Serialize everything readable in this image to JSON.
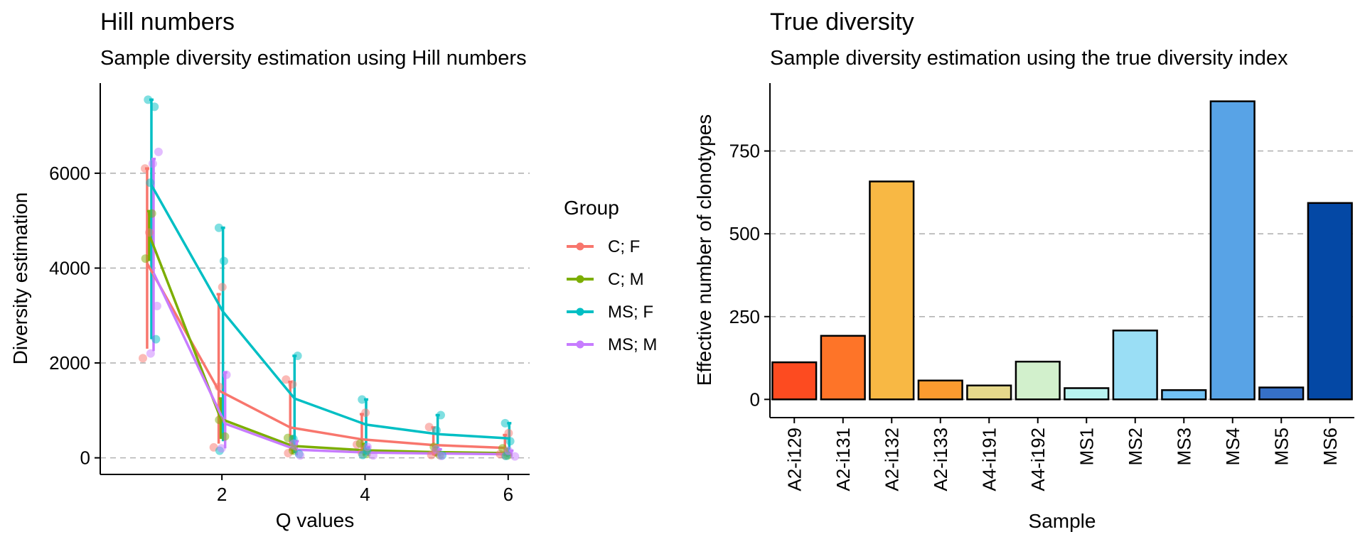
{
  "chart_data": [
    {
      "type": "line",
      "title": "Hill numbers",
      "subtitle": "Sample diversity estimation using Hill numbers",
      "xlabel": "Q values",
      "ylabel": "Diversity estimation",
      "xlim": [
        0.3,
        6.3
      ],
      "ylim": [
        -350,
        7900
      ],
      "x_ticks": [
        2,
        4,
        6
      ],
      "y_ticks": [
        0,
        2000,
        4000,
        6000
      ],
      "grid": "horizontal-dashed",
      "legend": {
        "title": "Group",
        "placement": "right",
        "entries": [
          {
            "label": "C; F",
            "color": "#F8766D"
          },
          {
            "label": "C; M",
            "color": "#7CAE00"
          },
          {
            "label": "MS; F",
            "color": "#00BFC4"
          },
          {
            "label": "MS; M",
            "color": "#C77CFF"
          }
        ]
      },
      "x": [
        1,
        2,
        3,
        4,
        5,
        6
      ],
      "series": [
        {
          "name": "C; F",
          "color": "#F8766D",
          "values": [
            4100,
            1420,
            640,
            390,
            270,
            210
          ],
          "error_low": [
            2300,
            300,
            150,
            100,
            50,
            40
          ],
          "error_high": [
            6100,
            3450,
            1600,
            920,
            640,
            480
          ],
          "points": [
            [
              1,
              2100
            ],
            [
              1,
              4750
            ],
            [
              1,
              6100
            ],
            [
              2,
              3600
            ],
            [
              2,
              220
            ],
            [
              2,
              1500
            ],
            [
              3,
              1650
            ],
            [
              3,
              1550
            ],
            [
              3,
              100
            ],
            [
              4,
              950
            ],
            [
              4,
              280
            ],
            [
              4,
              100
            ],
            [
              5,
              650
            ],
            [
              5,
              120
            ],
            [
              5,
              60
            ],
            [
              6,
              520
            ],
            [
              6,
              80
            ],
            [
              6,
              50
            ]
          ]
        },
        {
          "name": "C; M",
          "color": "#7CAE00",
          "values": [
            4700,
            820,
            250,
            160,
            120,
            100
          ],
          "error_low": [
            4150,
            400,
            80,
            50,
            30,
            20
          ],
          "error_high": [
            5200,
            1250,
            450,
            290,
            220,
            190
          ],
          "points": [
            [
              1,
              4200
            ],
            [
              1,
              5150
            ],
            [
              2,
              800
            ],
            [
              2,
              450
            ],
            [
              3,
              420
            ],
            [
              3,
              150
            ],
            [
              4,
              300
            ],
            [
              4,
              80
            ],
            [
              5,
              230
            ],
            [
              5,
              60
            ],
            [
              6,
              200
            ],
            [
              6,
              50
            ]
          ]
        },
        {
          "name": "MS; F",
          "color": "#00BFC4",
          "values": [
            5750,
            3080,
            1250,
            700,
            500,
            410
          ],
          "error_low": [
            2500,
            350,
            100,
            80,
            50,
            30
          ],
          "error_high": [
            7550,
            4850,
            2150,
            1230,
            900,
            730
          ],
          "points": [
            [
              1,
              7550
            ],
            [
              1,
              7400
            ],
            [
              1,
              5800
            ],
            [
              1,
              2500
            ],
            [
              2,
              4850
            ],
            [
              2,
              4150
            ],
            [
              2,
              150
            ],
            [
              3,
              2150
            ],
            [
              3,
              400
            ],
            [
              3,
              80
            ],
            [
              4,
              1230
            ],
            [
              4,
              150
            ],
            [
              4,
              60
            ],
            [
              5,
              900
            ],
            [
              5,
              580
            ],
            [
              5,
              50
            ],
            [
              6,
              730
            ],
            [
              6,
              350
            ],
            [
              6,
              40
            ]
          ]
        },
        {
          "name": "MS; M",
          "color": "#C77CFF",
          "values": [
            3900,
            720,
            170,
            110,
            90,
            75
          ],
          "error_low": [
            2250,
            200,
            50,
            40,
            30,
            20
          ],
          "error_high": [
            6300,
            1800,
            350,
            230,
            180,
            150
          ],
          "points": [
            [
              1,
              2200
            ],
            [
              1,
              3200
            ],
            [
              1,
              6200
            ],
            [
              1,
              6450
            ],
            [
              2,
              200
            ],
            [
              2,
              1750
            ],
            [
              3,
              300
            ],
            [
              3,
              50
            ],
            [
              4,
              230
            ],
            [
              4,
              50
            ],
            [
              5,
              180
            ],
            [
              5,
              40
            ],
            [
              6,
              150
            ],
            [
              6,
              30
            ]
          ]
        }
      ]
    },
    {
      "type": "bar",
      "title": "True diversity",
      "subtitle": "Sample diversity estimation using the true diversity index",
      "xlabel": "Sample",
      "ylabel": "Effective number of clonotypes",
      "ylim": [
        -55,
        955
      ],
      "y_ticks": [
        0,
        250,
        500,
        750
      ],
      "grid": "horizontal-dashed",
      "categories": [
        "A2-i129",
        "A2-i131",
        "A2-i132",
        "A2-i133",
        "A4-i191",
        "A4-i192",
        "MS1",
        "MS2",
        "MS3",
        "MS4",
        "MS5",
        "MS6"
      ],
      "values": [
        112,
        192,
        658,
        57,
        42,
        114,
        34,
        208,
        28,
        900,
        36,
        593
      ],
      "colors": [
        "#FD4B20",
        "#FE7428",
        "#F8B844",
        "#FB9B2F",
        "#E5D88B",
        "#D2F0CC",
        "#B8F3F0",
        "#9ADEF5",
        "#72C2F5",
        "#58A3E6",
        "#3670C7",
        "#0448A5"
      ]
    }
  ]
}
